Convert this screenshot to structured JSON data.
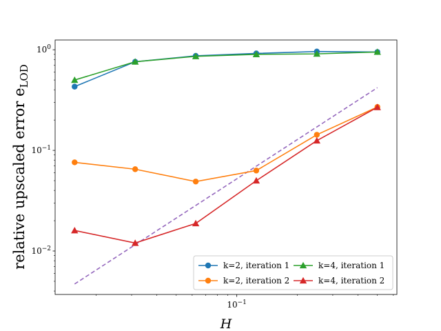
{
  "chart_data": {
    "type": "line",
    "xscale": "log",
    "yscale": "log",
    "xlabel": "H",
    "ylabel": "relative upscaled error e",
    "ylabel_subscript": "LOD",
    "xlim": [
      0.0125,
      0.625
    ],
    "ylim": [
      0.0037,
      1.25
    ],
    "x_tick_labels": [
      {
        "value": 0.1,
        "base": "10",
        "exp": "−1"
      }
    ],
    "y_tick_labels": [
      {
        "value": 0.01,
        "base": "10",
        "exp": "−2"
      },
      {
        "value": 0.1,
        "base": "10",
        "exp": "−1"
      },
      {
        "value": 1,
        "base": "10",
        "exp": "0"
      }
    ],
    "legend_position": "lower-right",
    "x": [
      0.015625,
      0.03125,
      0.0625,
      0.125,
      0.25,
      0.5
    ],
    "series": [
      {
        "name": "k=2, iteration 1",
        "color": "#1f77b4",
        "marker": "circle",
        "values": [
          0.43,
          0.76,
          0.87,
          0.92,
          0.96,
          0.95
        ]
      },
      {
        "name": "k=2, iteration 2",
        "color": "#ff7f0e",
        "marker": "circle",
        "values": [
          0.076,
          0.065,
          0.049,
          0.063,
          0.143,
          0.27
        ]
      },
      {
        "name": "k=4, iteration 1",
        "color": "#2ca02c",
        "marker": "triangle",
        "values": [
          0.5,
          0.76,
          0.86,
          0.9,
          0.91,
          0.95
        ]
      },
      {
        "name": "k=4, iteration 2",
        "color": "#d62728",
        "marker": "triangle",
        "values": [
          0.016,
          0.012,
          0.0188,
          0.05,
          0.125,
          0.268
        ]
      }
    ],
    "reference_line": {
      "color": "#9467bd",
      "style": "dashed",
      "x": [
        0.015625,
        0.5
      ],
      "values": [
        0.0047,
        0.42
      ]
    },
    "legend_order": [
      0,
      1,
      2,
      3
    ]
  }
}
